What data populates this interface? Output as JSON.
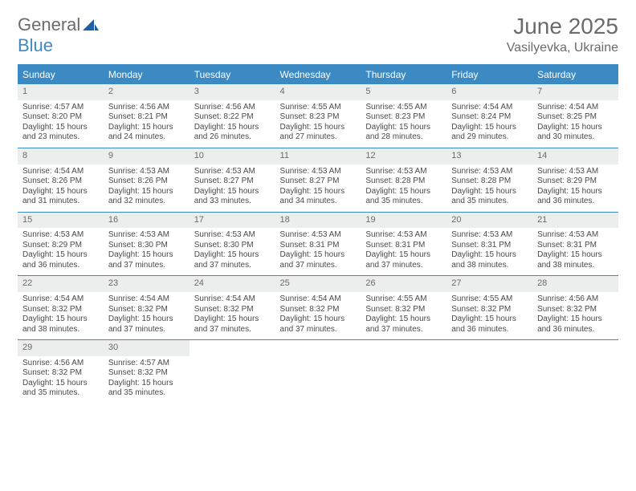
{
  "brand": {
    "word1": "General",
    "word2": "Blue",
    "logo_color": "#1d5fa6"
  },
  "header": {
    "title": "June 2025",
    "location": "Vasilyevka, Ukraine"
  },
  "colors": {
    "accent": "#3b8ac4",
    "header_row_bg": "#3b8ac4",
    "header_row_text": "#ffffff",
    "daynum_bg": "#eceded",
    "text_gray": "#6b6b6b",
    "body_text": "#4a4a4a"
  },
  "dayNames": [
    "Sunday",
    "Monday",
    "Tuesday",
    "Wednesday",
    "Thursday",
    "Friday",
    "Saturday"
  ],
  "weeks": [
    [
      {
        "n": "1",
        "sr": "Sunrise: 4:57 AM",
        "ss": "Sunset: 8:20 PM",
        "d1": "Daylight: 15 hours",
        "d2": "and 23 minutes."
      },
      {
        "n": "2",
        "sr": "Sunrise: 4:56 AM",
        "ss": "Sunset: 8:21 PM",
        "d1": "Daylight: 15 hours",
        "d2": "and 24 minutes."
      },
      {
        "n": "3",
        "sr": "Sunrise: 4:56 AM",
        "ss": "Sunset: 8:22 PM",
        "d1": "Daylight: 15 hours",
        "d2": "and 26 minutes."
      },
      {
        "n": "4",
        "sr": "Sunrise: 4:55 AM",
        "ss": "Sunset: 8:23 PM",
        "d1": "Daylight: 15 hours",
        "d2": "and 27 minutes."
      },
      {
        "n": "5",
        "sr": "Sunrise: 4:55 AM",
        "ss": "Sunset: 8:23 PM",
        "d1": "Daylight: 15 hours",
        "d2": "and 28 minutes."
      },
      {
        "n": "6",
        "sr": "Sunrise: 4:54 AM",
        "ss": "Sunset: 8:24 PM",
        "d1": "Daylight: 15 hours",
        "d2": "and 29 minutes."
      },
      {
        "n": "7",
        "sr": "Sunrise: 4:54 AM",
        "ss": "Sunset: 8:25 PM",
        "d1": "Daylight: 15 hours",
        "d2": "and 30 minutes."
      }
    ],
    [
      {
        "n": "8",
        "sr": "Sunrise: 4:54 AM",
        "ss": "Sunset: 8:26 PM",
        "d1": "Daylight: 15 hours",
        "d2": "and 31 minutes."
      },
      {
        "n": "9",
        "sr": "Sunrise: 4:53 AM",
        "ss": "Sunset: 8:26 PM",
        "d1": "Daylight: 15 hours",
        "d2": "and 32 minutes."
      },
      {
        "n": "10",
        "sr": "Sunrise: 4:53 AM",
        "ss": "Sunset: 8:27 PM",
        "d1": "Daylight: 15 hours",
        "d2": "and 33 minutes."
      },
      {
        "n": "11",
        "sr": "Sunrise: 4:53 AM",
        "ss": "Sunset: 8:27 PM",
        "d1": "Daylight: 15 hours",
        "d2": "and 34 minutes."
      },
      {
        "n": "12",
        "sr": "Sunrise: 4:53 AM",
        "ss": "Sunset: 8:28 PM",
        "d1": "Daylight: 15 hours",
        "d2": "and 35 minutes."
      },
      {
        "n": "13",
        "sr": "Sunrise: 4:53 AM",
        "ss": "Sunset: 8:28 PM",
        "d1": "Daylight: 15 hours",
        "d2": "and 35 minutes."
      },
      {
        "n": "14",
        "sr": "Sunrise: 4:53 AM",
        "ss": "Sunset: 8:29 PM",
        "d1": "Daylight: 15 hours",
        "d2": "and 36 minutes."
      }
    ],
    [
      {
        "n": "15",
        "sr": "Sunrise: 4:53 AM",
        "ss": "Sunset: 8:29 PM",
        "d1": "Daylight: 15 hours",
        "d2": "and 36 minutes."
      },
      {
        "n": "16",
        "sr": "Sunrise: 4:53 AM",
        "ss": "Sunset: 8:30 PM",
        "d1": "Daylight: 15 hours",
        "d2": "and 37 minutes."
      },
      {
        "n": "17",
        "sr": "Sunrise: 4:53 AM",
        "ss": "Sunset: 8:30 PM",
        "d1": "Daylight: 15 hours",
        "d2": "and 37 minutes."
      },
      {
        "n": "18",
        "sr": "Sunrise: 4:53 AM",
        "ss": "Sunset: 8:31 PM",
        "d1": "Daylight: 15 hours",
        "d2": "and 37 minutes."
      },
      {
        "n": "19",
        "sr": "Sunrise: 4:53 AM",
        "ss": "Sunset: 8:31 PM",
        "d1": "Daylight: 15 hours",
        "d2": "and 37 minutes."
      },
      {
        "n": "20",
        "sr": "Sunrise: 4:53 AM",
        "ss": "Sunset: 8:31 PM",
        "d1": "Daylight: 15 hours",
        "d2": "and 38 minutes."
      },
      {
        "n": "21",
        "sr": "Sunrise: 4:53 AM",
        "ss": "Sunset: 8:31 PM",
        "d1": "Daylight: 15 hours",
        "d2": "and 38 minutes."
      }
    ],
    [
      {
        "n": "22",
        "sr": "Sunrise: 4:54 AM",
        "ss": "Sunset: 8:32 PM",
        "d1": "Daylight: 15 hours",
        "d2": "and 38 minutes."
      },
      {
        "n": "23",
        "sr": "Sunrise: 4:54 AM",
        "ss": "Sunset: 8:32 PM",
        "d1": "Daylight: 15 hours",
        "d2": "and 37 minutes."
      },
      {
        "n": "24",
        "sr": "Sunrise: 4:54 AM",
        "ss": "Sunset: 8:32 PM",
        "d1": "Daylight: 15 hours",
        "d2": "and 37 minutes."
      },
      {
        "n": "25",
        "sr": "Sunrise: 4:54 AM",
        "ss": "Sunset: 8:32 PM",
        "d1": "Daylight: 15 hours",
        "d2": "and 37 minutes."
      },
      {
        "n": "26",
        "sr": "Sunrise: 4:55 AM",
        "ss": "Sunset: 8:32 PM",
        "d1": "Daylight: 15 hours",
        "d2": "and 37 minutes."
      },
      {
        "n": "27",
        "sr": "Sunrise: 4:55 AM",
        "ss": "Sunset: 8:32 PM",
        "d1": "Daylight: 15 hours",
        "d2": "and 36 minutes."
      },
      {
        "n": "28",
        "sr": "Sunrise: 4:56 AM",
        "ss": "Sunset: 8:32 PM",
        "d1": "Daylight: 15 hours",
        "d2": "and 36 minutes."
      }
    ],
    [
      {
        "n": "29",
        "sr": "Sunrise: 4:56 AM",
        "ss": "Sunset: 8:32 PM",
        "d1": "Daylight: 15 hours",
        "d2": "and 35 minutes."
      },
      {
        "n": "30",
        "sr": "Sunrise: 4:57 AM",
        "ss": "Sunset: 8:32 PM",
        "d1": "Daylight: 15 hours",
        "d2": "and 35 minutes."
      },
      null,
      null,
      null,
      null,
      null
    ]
  ]
}
